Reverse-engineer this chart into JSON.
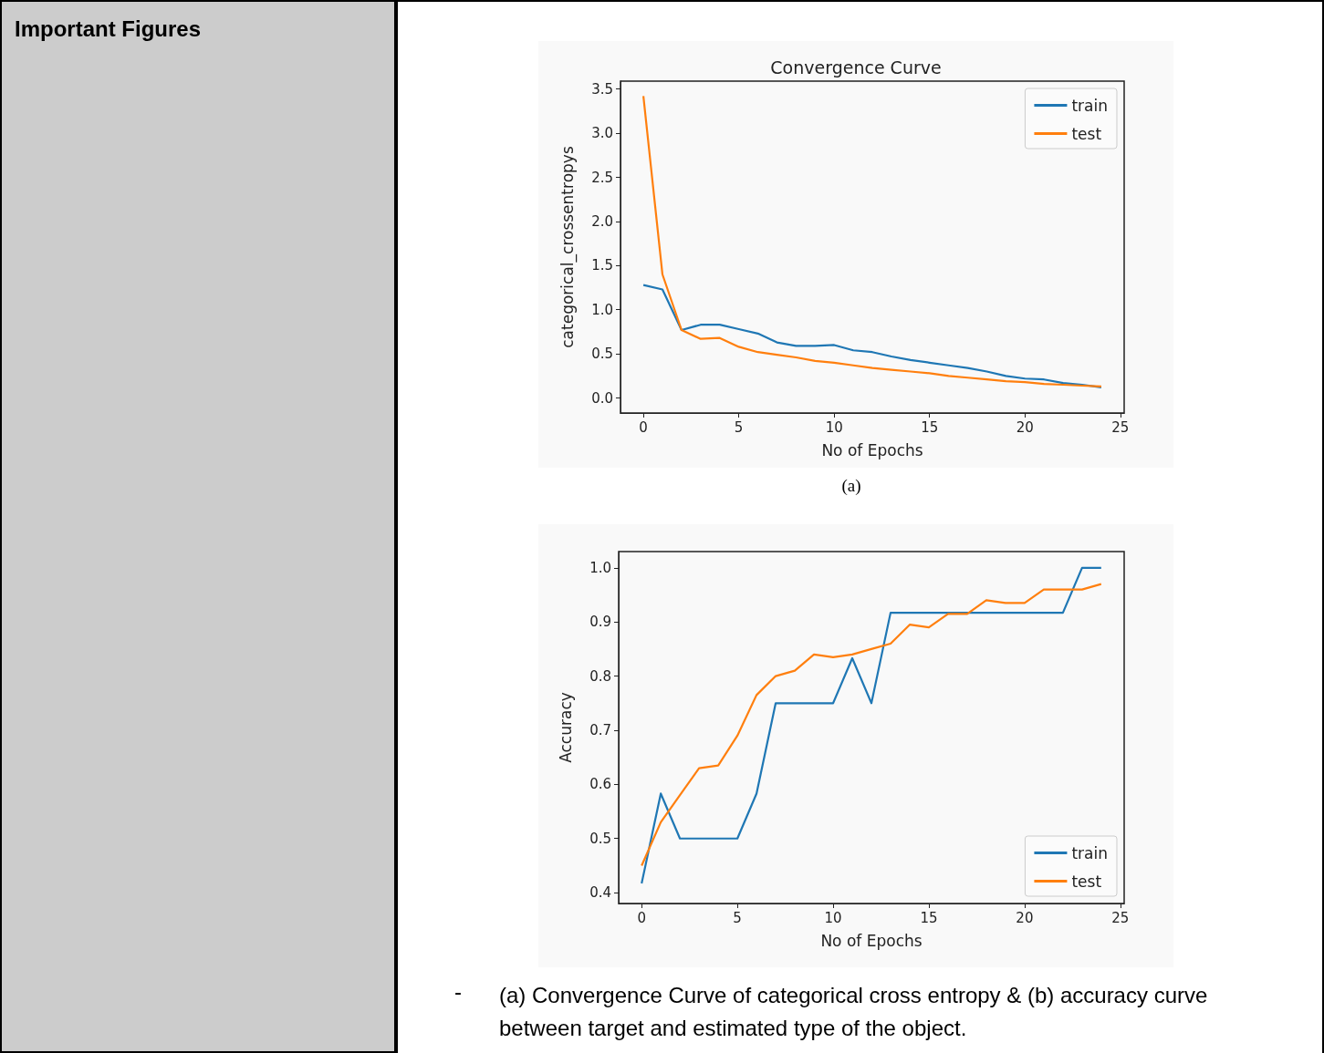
{
  "chart_data": [
    {
      "type": "line",
      "title": "Convergence Curve",
      "xlabel": "No of Epochs",
      "ylabel": "categorical_crossentropys",
      "x": [
        0,
        1,
        2,
        3,
        4,
        5,
        6,
        7,
        8,
        9,
        10,
        11,
        12,
        13,
        14,
        15,
        16,
        17,
        18,
        19,
        20,
        21,
        22,
        23,
        24
      ],
      "series": [
        {
          "name": "train",
          "color": "#1f77b4",
          "values": [
            1.28,
            1.23,
            0.77,
            0.83,
            0.83,
            0.78,
            0.73,
            0.63,
            0.59,
            0.59,
            0.6,
            0.54,
            0.52,
            0.47,
            0.43,
            0.4,
            0.37,
            0.34,
            0.3,
            0.25,
            0.22,
            0.21,
            0.17,
            0.15,
            0.12
          ]
        },
        {
          "name": "test",
          "color": "#ff7f0e",
          "values": [
            3.42,
            1.4,
            0.77,
            0.67,
            0.68,
            0.58,
            0.52,
            0.49,
            0.46,
            0.42,
            0.4,
            0.37,
            0.34,
            0.32,
            0.3,
            0.28,
            0.25,
            0.23,
            0.21,
            0.19,
            0.18,
            0.16,
            0.15,
            0.14,
            0.13
          ]
        }
      ],
      "xlim": [
        -1.2,
        25.2
      ],
      "xticks": [
        0,
        5,
        10,
        15,
        20,
        25
      ],
      "ylim": [
        -0.17,
        3.59
      ],
      "yticks": [
        {
          "value": 0,
          "label": "0.0"
        },
        0.5,
        {
          "value": 1,
          "label": "1.0"
        },
        1.5,
        {
          "value": 2,
          "label": "2.0"
        },
        2.5,
        {
          "value": 3,
          "label": "3.0"
        },
        3.5
      ],
      "legend": "top right",
      "grid": false,
      "marker": "none",
      "annotations": [
        "Important Figures",
        "(a)"
      ]
    },
    {
      "type": "line",
      "xlabel": "No of Epochs",
      "ylabel": "Accuracy",
      "x": [
        0,
        1,
        2,
        3,
        4,
        5,
        6,
        7,
        8,
        9,
        10,
        11,
        12,
        13,
        14,
        15,
        16,
        17,
        18,
        19,
        20,
        21,
        22,
        23,
        24
      ],
      "series": [
        {
          "name": "train",
          "color": "#1f77b4",
          "values": [
            0.417,
            0.583,
            0.5,
            0.5,
            0.5,
            0.5,
            0.583,
            0.75,
            0.75,
            0.75,
            0.75,
            0.833,
            0.75,
            0.917,
            0.917,
            0.917,
            0.917,
            0.917,
            0.917,
            0.917,
            0.917,
            0.917,
            0.917,
            1.0,
            1.0
          ]
        },
        {
          "name": "test",
          "color": "#ff7f0e",
          "values": [
            0.45,
            0.53,
            0.58,
            0.63,
            0.635,
            0.69,
            0.765,
            0.8,
            0.81,
            0.84,
            0.835,
            0.84,
            0.85,
            0.86,
            0.895,
            0.89,
            0.915,
            0.915,
            0.94,
            0.935,
            0.935,
            0.96,
            0.96,
            0.96,
            0.97
          ]
        }
      ],
      "xlim": [
        -1.2,
        25.2
      ],
      "xticks": [
        0,
        5,
        10,
        15,
        20,
        25
      ],
      "ylim": [
        0.38,
        1.03
      ],
      "yticks": [
        0.4,
        0.5,
        0.6,
        0.7,
        0.8,
        0.9,
        {
          "value": 1,
          "label": "1.0"
        }
      ],
      "legend": "bottom right",
      "grid": false,
      "marker": "none",
      "annotations": [
        "-",
        "(a) Convergence Curve of categorical cross entropy & (b) accuracy curve between target and estimated type of the object."
      ]
    }
  ]
}
